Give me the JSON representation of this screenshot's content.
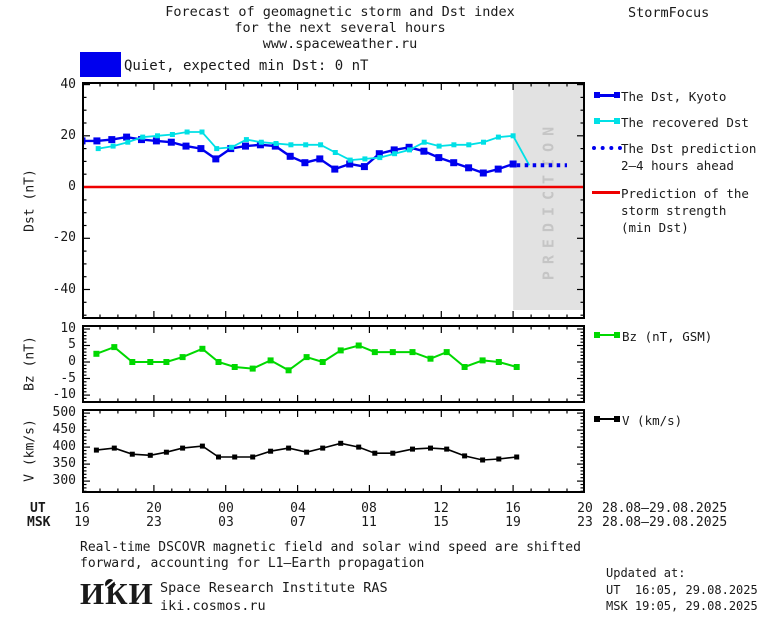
{
  "page": {
    "title_line1": "Forecast of geomagnetic storm and Dst index",
    "title_line2": "for the next several hours",
    "title_line3": "www.spaceweather.ru",
    "brand": "StormFocus"
  },
  "status": {
    "label": "Quiet, expected min Dst: 0 nT",
    "box_color": "#0000ee"
  },
  "colors": {
    "blue": "#0000ee",
    "cyan": "#00e0e6",
    "green": "#00d800",
    "red": "#ee0000",
    "black": "#000000",
    "zone_bg": "#e2e2e2",
    "zone_text": "#c5c5c5",
    "text": "#1a1a1a"
  },
  "legend_dst": {
    "items": [
      {
        "label": "The Dst, Kyoto"
      },
      {
        "label": "The recovered Dst"
      },
      {
        "label": "The Dst prediction",
        "label2": "2–4 hours ahead"
      },
      {
        "label": "Prediction of the",
        "label2": "storm strength",
        "label3": "(min Dst)"
      }
    ]
  },
  "legend_bz": {
    "label": "Bz (nT, GSM)"
  },
  "legend_v": {
    "label": "V (km/s)"
  },
  "xaxis": {
    "ut_prefix": "UT",
    "msk_prefix": "MSK",
    "ut_labels": [
      "16",
      "20",
      "00",
      "04",
      "08",
      "12",
      "16",
      "20"
    ],
    "msk_labels": [
      "19",
      "23",
      "03",
      "07",
      "11",
      "15",
      "19",
      "23"
    ],
    "ut_date": "28.08–29.08.2025",
    "msk_date": "28.08–29.08.2025"
  },
  "footer": {
    "note_line1": "Real-time DSCOVR magnetic field and solar wind speed are shifted",
    "note_line2": "forward, accounting for L1–Earth propagation",
    "logo": "ИКИ",
    "institute": "Space Research Institute RAS",
    "site": "iki.cosmos.ru",
    "updated_label": "Updated at:",
    "updated_ut": "UT  16:05, 29.08.2025",
    "updated_msk": "MSK 19:05, 29.08.2025"
  },
  "chart_data": [
    {
      "type": "line",
      "title": "Dst index and forecast",
      "ylabel": "Dst (nT)",
      "ylim": [
        -51.5,
        41
      ],
      "yticks": [
        40,
        20,
        0,
        -20,
        -40
      ],
      "ytick_labels": [
        "40",
        "20",
        "0",
        "-20",
        "-40"
      ],
      "yminor": 5,
      "xlim": [
        0,
        28
      ],
      "xticks": [
        0,
        4,
        8,
        12,
        16,
        20,
        24,
        28
      ],
      "xminor": 1,
      "prediction_zone": {
        "from_hour": 24,
        "label": "PREDICTION"
      },
      "series": [
        {
          "name": "The Dst, Kyoto",
          "color": "#0000ee",
          "width": 2.4,
          "marker": 7,
          "x": [
            0,
            0.83,
            1.66,
            2.48,
            3.31,
            4.14,
            4.97,
            5.79,
            6.62,
            7.45,
            8.28,
            9.1,
            9.93,
            10.76,
            11.59,
            12.41,
            13.24,
            14.07,
            14.9,
            15.72,
            16.55,
            17.38,
            18.21,
            19.03,
            19.86,
            20.69,
            21.52,
            22.34,
            23.17,
            24
          ],
          "values": [
            18,
            18,
            18.5,
            19.5,
            18.5,
            18,
            17.5,
            16,
            15,
            11,
            15,
            16,
            16.5,
            16,
            12,
            9.5,
            11,
            7,
            9,
            8,
            13,
            14.5,
            15.5,
            14,
            11.5,
            9.5,
            7.5,
            5.5,
            7,
            9
          ]
        },
        {
          "name": "The recovered Dst",
          "color": "#00e0e6",
          "width": 1.8,
          "marker": 5,
          "x": [
            0.9,
            1.73,
            2.55,
            3.38,
            4.2,
            5.03,
            5.85,
            6.68,
            7.5,
            8.33,
            9.15,
            9.98,
            10.8,
            11.63,
            12.45,
            13.28,
            14.1,
            14.93,
            15.75,
            16.58,
            17.4,
            18.23,
            19.05,
            19.88,
            20.7,
            21.53,
            22.35,
            23.18,
            24
          ],
          "values": [
            15,
            16,
            17.5,
            19.5,
            20,
            20.5,
            21.5,
            21.5,
            15,
            15.5,
            18.5,
            17.5,
            17,
            16.5,
            16.5,
            16.5,
            13.5,
            10.5,
            11,
            11.5,
            13,
            14.5,
            17.5,
            16,
            16.5,
            16.5,
            17.5,
            19.5,
            20
          ]
        },
        {
          "name": "The recovered Dst (prediction segment)",
          "color": "#00e0e6",
          "width": 1.8,
          "marker": 0,
          "x": [
            24,
            24.9
          ],
          "values": [
            20,
            8.5
          ]
        },
        {
          "name": "The Dst prediction 2-4 hours ahead",
          "color": "#0000ee",
          "width": 4,
          "marker": 0,
          "dash": "3.5 4.5",
          "x": [
            24.2,
            27
          ],
          "values": [
            8.5,
            8.5
          ]
        },
        {
          "name": "Prediction of the storm strength (min Dst)",
          "color": "#ee0000",
          "width": 2.6,
          "marker": 0,
          "x": [
            0,
            28
          ],
          "values": [
            0,
            0
          ]
        }
      ]
    },
    {
      "type": "line",
      "title": "Interplanetary magnetic field Bz",
      "ylabel": "Bz (nT)",
      "ylim": [
        -12.4,
        11.2
      ],
      "yticks": [
        10,
        5,
        0,
        -5,
        -10
      ],
      "ytick_labels": [
        "10",
        "5",
        "0",
        "-5",
        "-10"
      ],
      "yminor": 1,
      "xlim": [
        0,
        28
      ],
      "xticks": [
        0,
        4,
        8,
        12,
        16,
        20,
        24,
        28
      ],
      "xminor": 1,
      "series": [
        {
          "name": "Bz (nT, GSM)",
          "color": "#00d800",
          "width": 2,
          "marker": 6,
          "x": [
            0.8,
            1.8,
            2.8,
            3.8,
            4.7,
            5.6,
            6.7,
            7.6,
            8.5,
            9.5,
            10.5,
            11.5,
            12.5,
            13.4,
            14.4,
            15.4,
            16.3,
            17.3,
            18.4,
            19.4,
            20.3,
            21.3,
            22.3,
            23.2,
            24.2
          ],
          "values": [
            2.5,
            4.5,
            0,
            0,
            0,
            1.5,
            4,
            0,
            -1.5,
            -2,
            0.5,
            -2.5,
            1.5,
            0,
            3.5,
            5,
            3,
            3,
            3,
            1,
            3,
            -1.5,
            0.5,
            0,
            -1.5
          ]
        }
      ]
    },
    {
      "type": "line",
      "title": "Solar wind speed",
      "ylabel": "V (km/s)",
      "ylim": [
        265,
        512
      ],
      "yticks": [
        500,
        450,
        400,
        350,
        300
      ],
      "ytick_labels": [
        "500",
        "450",
        "400",
        "350",
        "300"
      ],
      "yminor": 10,
      "xlim": [
        0,
        28
      ],
      "xticks": [
        0,
        4,
        8,
        12,
        16,
        20,
        24,
        28
      ],
      "xminor": 1,
      "series": [
        {
          "name": "V (km/s)",
          "color": "#000000",
          "width": 1.6,
          "marker": 5,
          "x": [
            0.8,
            1.8,
            2.8,
            3.8,
            4.7,
            5.6,
            6.7,
            7.6,
            8.5,
            9.5,
            10.5,
            11.5,
            12.5,
            13.4,
            14.4,
            15.4,
            16.3,
            17.3,
            18.4,
            19.4,
            20.3,
            21.3,
            22.3,
            23.2,
            24.2
          ],
          "values": [
            391,
            397,
            379,
            376,
            385,
            397,
            403,
            371,
            371,
            371,
            388,
            397,
            385,
            397,
            411,
            400,
            382,
            382,
            394,
            397,
            394,
            374,
            362,
            365,
            371
          ]
        }
      ]
    }
  ]
}
